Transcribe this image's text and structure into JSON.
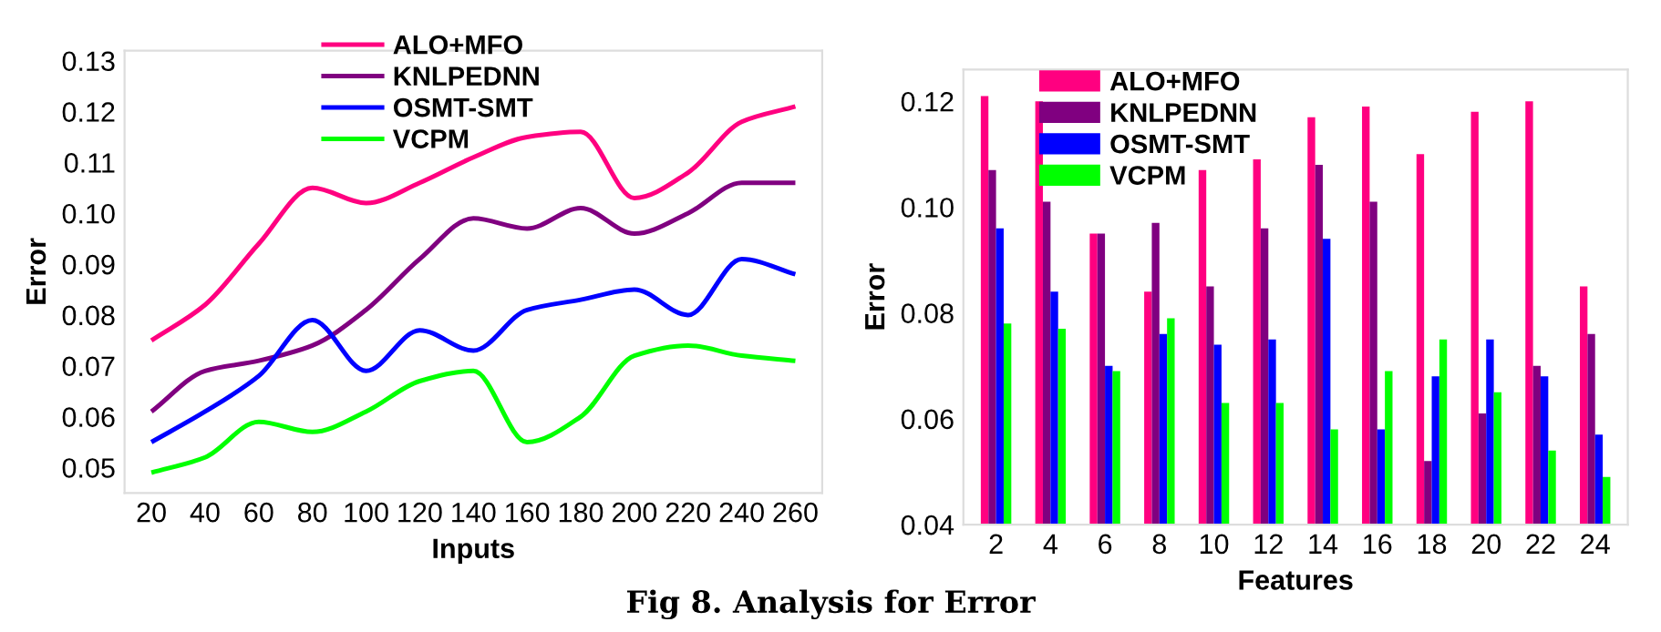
{
  "chart_data": [
    {
      "type": "line",
      "xlabel": "Inputs",
      "ylabel": "Error",
      "x": [
        20,
        40,
        60,
        80,
        100,
        120,
        140,
        160,
        180,
        200,
        220,
        240,
        260
      ],
      "xlim": [
        10,
        270
      ],
      "xticks": [
        20,
        40,
        60,
        80,
        100,
        120,
        140,
        160,
        180,
        200,
        220,
        240,
        260
      ],
      "ylim": [
        0.045,
        0.132
      ],
      "yticks": [
        {
          "value": 0.05,
          "label": "0.05"
        },
        {
          "value": 0.06,
          "label": "0.06"
        },
        {
          "value": 0.07,
          "label": "0.07"
        },
        {
          "value": 0.08,
          "label": "0.08"
        },
        {
          "value": 0.09,
          "label": "0.09"
        },
        {
          "value": 0.1,
          "label": "0.10"
        },
        {
          "value": 0.11,
          "label": "0.11"
        },
        {
          "value": 0.12,
          "label": "0.12"
        },
        {
          "value": 0.13,
          "label": "0.13"
        }
      ],
      "grid": false,
      "legend": "top",
      "series": [
        {
          "name": "ALO+MFO",
          "color": "#ff0080",
          "values": [
            0.075,
            0.082,
            0.094,
            0.105,
            0.102,
            0.106,
            0.111,
            0.115,
            0.116,
            0.103,
            0.108,
            0.118,
            0.121
          ]
        },
        {
          "name": "KNLPEDNN",
          "color": "#800080",
          "values": [
            0.061,
            0.069,
            0.071,
            0.074,
            0.081,
            0.091,
            0.099,
            0.097,
            0.101,
            0.096,
            0.1,
            0.106,
            0.106
          ]
        },
        {
          "name": "OSMT-SMT",
          "color": "#0000ff",
          "values": [
            0.055,
            0.061,
            0.068,
            0.079,
            0.069,
            0.077,
            0.073,
            0.081,
            0.083,
            0.085,
            0.08,
            0.091,
            0.088
          ]
        },
        {
          "name": "VCPM",
          "color": "#00ff00",
          "values": [
            0.049,
            0.052,
            0.059,
            0.057,
            0.061,
            0.067,
            0.069,
            0.055,
            0.06,
            0.072,
            0.074,
            0.072,
            0.071
          ]
        }
      ]
    },
    {
      "type": "bar",
      "xlabel": "Features",
      "ylabel": "Error",
      "categories": [
        "2",
        "4",
        "6",
        "8",
        "10",
        "12",
        "14",
        "16",
        "18",
        "20",
        "22",
        "24"
      ],
      "ylim": [
        0.04,
        0.126
      ],
      "yticks": [
        {
          "value": 0.04,
          "label": "0.04"
        },
        {
          "value": 0.06,
          "label": "0.06"
        },
        {
          "value": 0.08,
          "label": "0.08"
        },
        {
          "value": 0.1,
          "label": "0.10"
        },
        {
          "value": 0.12,
          "label": "0.12"
        }
      ],
      "grid": false,
      "legend": "top left",
      "annotations": [
        "Fig 8. Analysis for Error"
      ],
      "series": [
        {
          "name": "ALO+MFO",
          "color": "#ff0080",
          "values": [
            0.121,
            0.12,
            0.095,
            0.084,
            0.107,
            0.109,
            0.117,
            0.119,
            0.11,
            0.118,
            0.12,
            0.085
          ]
        },
        {
          "name": "KNLPEDNN",
          "color": "#800080",
          "values": [
            0.107,
            0.101,
            0.095,
            0.097,
            0.085,
            0.096,
            0.108,
            0.101,
            0.052,
            0.061,
            0.07,
            0.076
          ]
        },
        {
          "name": "OSMT-SMT",
          "color": "#0000ff",
          "values": [
            0.096,
            0.084,
            0.07,
            0.076,
            0.074,
            0.075,
            0.094,
            0.058,
            0.068,
            0.075,
            0.068,
            0.057
          ]
        },
        {
          "name": "VCPM",
          "color": "#00ff00",
          "values": [
            0.078,
            0.077,
            0.069,
            0.079,
            0.063,
            0.063,
            0.058,
            0.069,
            0.075,
            0.065,
            0.054,
            0.049
          ]
        }
      ]
    }
  ]
}
